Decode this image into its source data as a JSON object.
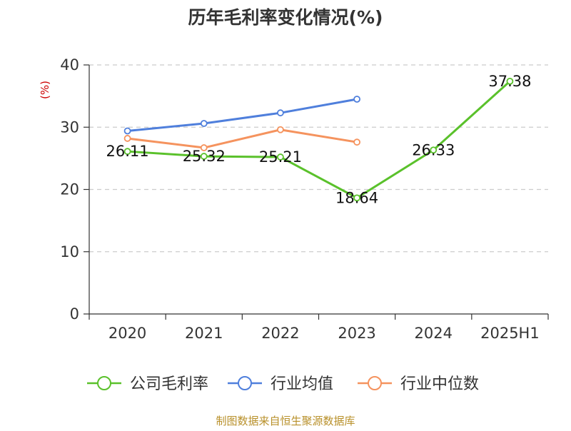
{
  "colors": {
    "company": "#5ac12b",
    "industry_avg": "#4f7fdc",
    "industry_median": "#f5935e",
    "grid": "#cccccc",
    "axis": "#333333",
    "ylabel": "#cc0000",
    "source": "#b8902a"
  },
  "source_note": "制图数据来自恒生聚源数据库",
  "chart_data": {
    "type": "line",
    "title": "历年毛利率变化情况(%)",
    "ylabel": "(%)",
    "xlabel": "",
    "categories": [
      "2020",
      "2021",
      "2022",
      "2023",
      "2024",
      "2025H1"
    ],
    "ylim": [
      0,
      40
    ],
    "yticks": [
      0,
      10,
      20,
      30,
      40
    ],
    "grid": true,
    "legend_position": "bottom",
    "series": [
      {
        "name": "公司毛利率",
        "values": [
          26.11,
          25.32,
          25.21,
          18.64,
          26.33,
          37.38
        ],
        "labels": [
          "26.11",
          "25.32",
          "25.21",
          "18.64",
          "26.33",
          "37.38"
        ],
        "color_key": "company"
      },
      {
        "name": "行业均值",
        "values": [
          29.4,
          30.6,
          32.3,
          34.5,
          null,
          null
        ],
        "color_key": "industry_avg"
      },
      {
        "name": "行业中位数",
        "values": [
          28.2,
          26.7,
          29.6,
          27.6,
          null,
          null
        ],
        "color_key": "industry_median"
      }
    ]
  }
}
